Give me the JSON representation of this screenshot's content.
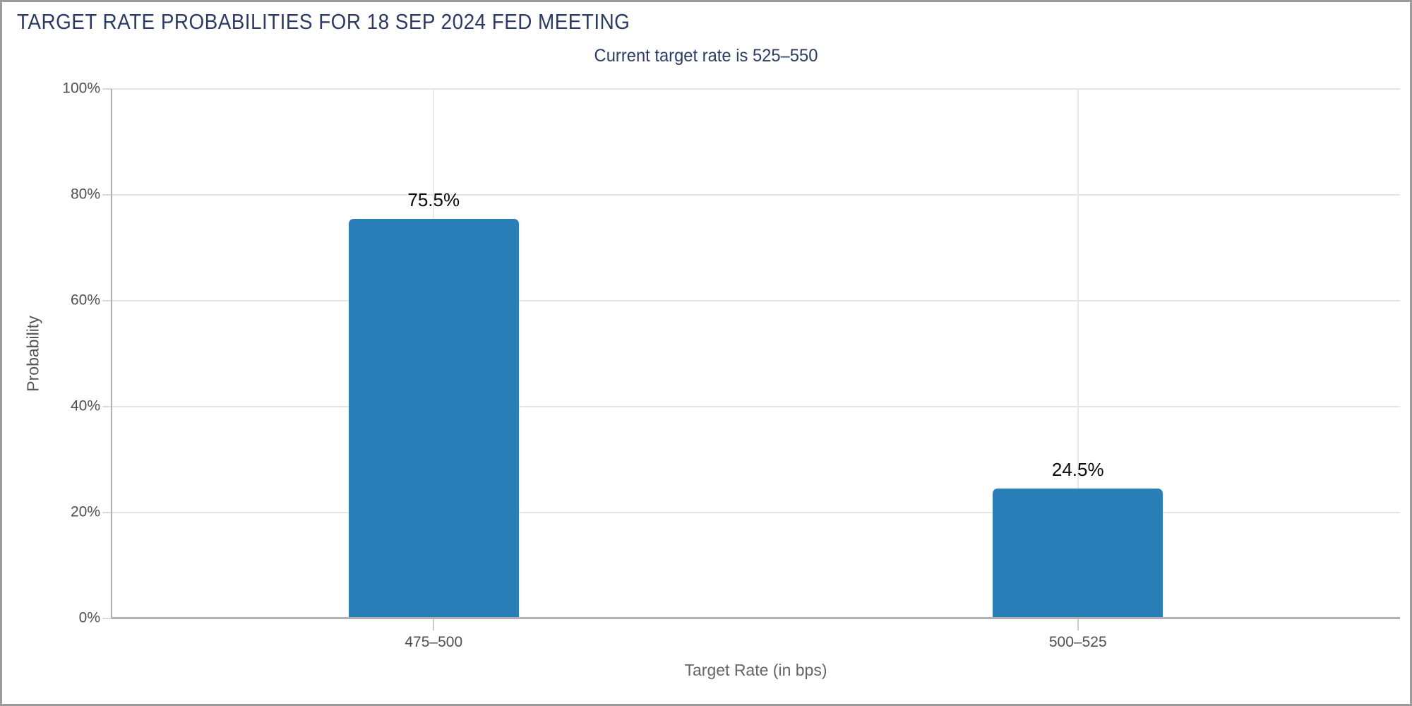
{
  "chart_data": {
    "type": "bar",
    "title": "TARGET RATE PROBABILITIES FOR 18 SEP 2024 FED MEETING",
    "subtitle": "Current target rate is 525–550",
    "categories": [
      "475–500",
      "500–525"
    ],
    "values": [
      75.5,
      24.5
    ],
    "value_labels": [
      "75.5%",
      "24.5%"
    ],
    "xlabel": "Target Rate (in bps)",
    "ylabel": "Probability",
    "ylim": [
      0,
      100
    ],
    "ytick_step": 20,
    "ytick_labels": [
      "0%",
      "20%",
      "40%",
      "60%",
      "80%",
      "100%"
    ],
    "grid": true,
    "legend": "none",
    "layout_hints": {
      "vertical_gridline_at_each_bar": true,
      "value_labels_above_bars": true,
      "title_align": "left",
      "subtitle_align": "center"
    }
  },
  "colors": {
    "title_text": "#2c3b62",
    "subtitle_text": "#2c3b62",
    "axis_tick_text": "#4f4f4f",
    "axis_title_text": "#666666",
    "value_label_text": "#0a0a0a",
    "bar": "#2a7fb8",
    "gridline": "#e4e4e4",
    "axis_line": "#b0b0b0",
    "page_border": "#9b9b9b",
    "background": "#ffffff"
  }
}
